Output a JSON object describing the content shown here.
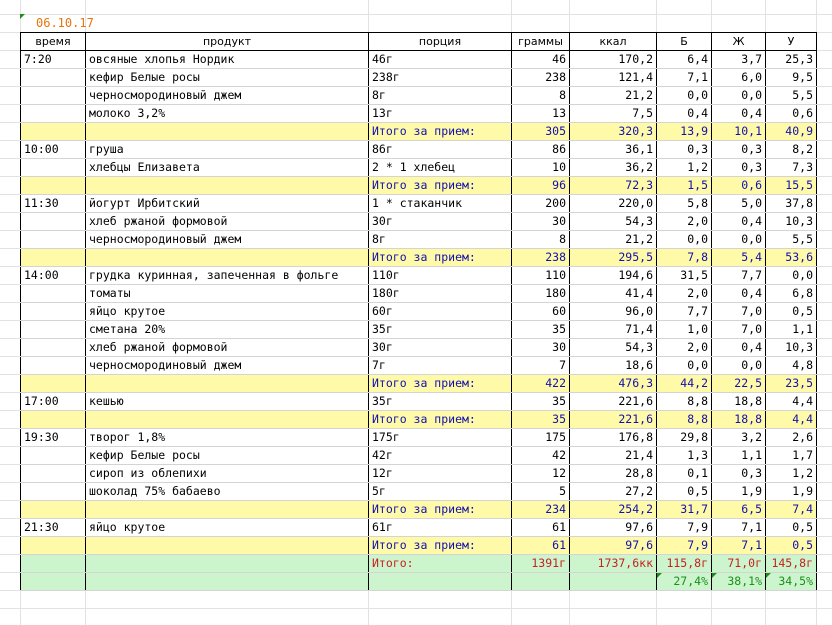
{
  "date": "06.10.17",
  "headers": [
    "время",
    "продукт",
    "порция",
    "граммы",
    "ккал",
    "Б",
    "Ж",
    "У"
  ],
  "rows": [
    {
      "kind": "item",
      "time": "7:20",
      "product": "овсяные хлопья Нордик",
      "portion": "46г",
      "grams": "46",
      "kcal": "170,2",
      "b": "6,4",
      "zh": "3,7",
      "u": "25,3"
    },
    {
      "kind": "item",
      "time": "",
      "product": "кефир Белые росы",
      "portion": "238г",
      "grams": "238",
      "kcal": "121,4",
      "b": "7,1",
      "zh": "6,0",
      "u": "9,5"
    },
    {
      "kind": "item",
      "time": "",
      "product": "черносмородиновый джем",
      "portion": "8г",
      "grams": "8",
      "kcal": "21,2",
      "b": "0,0",
      "zh": "0,0",
      "u": "5,5"
    },
    {
      "kind": "item",
      "time": "",
      "product": "молоко 3,2%",
      "portion": "13г",
      "grams": "13",
      "kcal": "7,5",
      "b": "0,4",
      "zh": "0,4",
      "u": "0,6"
    },
    {
      "kind": "sub",
      "time": "",
      "product": "",
      "portion": "Итого за прием:",
      "grams": "305",
      "kcal": "320,3",
      "b": "13,9",
      "zh": "10,1",
      "u": "40,9"
    },
    {
      "kind": "item",
      "time": "10:00",
      "product": "груша",
      "portion": "86г",
      "grams": "86",
      "kcal": "36,1",
      "b": "0,3",
      "zh": "0,3",
      "u": "8,2"
    },
    {
      "kind": "item",
      "time": "",
      "product": "хлебцы Елизавета",
      "portion": "2 * 1 хлебец",
      "grams": "10",
      "kcal": "36,2",
      "b": "1,2",
      "zh": "0,3",
      "u": "7,3"
    },
    {
      "kind": "sub",
      "time": "",
      "product": "",
      "portion": "Итого за прием:",
      "grams": "96",
      "kcal": "72,3",
      "b": "1,5",
      "zh": "0,6",
      "u": "15,5"
    },
    {
      "kind": "item",
      "time": "11:30",
      "product": "йогурт Ирбитский",
      "portion": "1 * стаканчик",
      "grams": "200",
      "kcal": "220,0",
      "b": "5,8",
      "zh": "5,0",
      "u": "37,8"
    },
    {
      "kind": "item",
      "time": "",
      "product": "хлеб ржаной формовой",
      "portion": "30г",
      "grams": "30",
      "kcal": "54,3",
      "b": "2,0",
      "zh": "0,4",
      "u": "10,3"
    },
    {
      "kind": "item",
      "time": "",
      "product": "черносмородиновый джем",
      "portion": "8г",
      "grams": "8",
      "kcal": "21,2",
      "b": "0,0",
      "zh": "0,0",
      "u": "5,5"
    },
    {
      "kind": "sub",
      "time": "",
      "product": "",
      "portion": "Итого за прием:",
      "grams": "238",
      "kcal": "295,5",
      "b": "7,8",
      "zh": "5,4",
      "u": "53,6"
    },
    {
      "kind": "item",
      "time": "14:00",
      "product": "грудка куринная, запеченная в фольге",
      "portion": "110г",
      "grams": "110",
      "kcal": "194,6",
      "b": "31,5",
      "zh": "7,7",
      "u": "0,0"
    },
    {
      "kind": "item",
      "time": "",
      "product": "томаты",
      "portion": "180г",
      "grams": "180",
      "kcal": "41,4",
      "b": "2,0",
      "zh": "0,4",
      "u": "6,8"
    },
    {
      "kind": "item",
      "time": "",
      "product": "яйцо крутое",
      "portion": "60г",
      "grams": "60",
      "kcal": "96,0",
      "b": "7,7",
      "zh": "7,0",
      "u": "0,5"
    },
    {
      "kind": "item",
      "time": "",
      "product": "сметана 20%",
      "portion": "35г",
      "grams": "35",
      "kcal": "71,4",
      "b": "1,0",
      "zh": "7,0",
      "u": "1,1"
    },
    {
      "kind": "item",
      "time": "",
      "product": "хлеб ржаной формовой",
      "portion": "30г",
      "grams": "30",
      "kcal": "54,3",
      "b": "2,0",
      "zh": "0,4",
      "u": "10,3"
    },
    {
      "kind": "item",
      "time": "",
      "product": "черносмородиновый джем",
      "portion": "7г",
      "grams": "7",
      "kcal": "18,6",
      "b": "0,0",
      "zh": "0,0",
      "u": "4,8"
    },
    {
      "kind": "sub",
      "time": "",
      "product": "",
      "portion": "Итого за прием:",
      "grams": "422",
      "kcal": "476,3",
      "b": "44,2",
      "zh": "22,5",
      "u": "23,5"
    },
    {
      "kind": "item",
      "time": "17:00",
      "product": "кешью",
      "portion": "35г",
      "grams": "35",
      "kcal": "221,6",
      "b": "8,8",
      "zh": "18,8",
      "u": "4,4"
    },
    {
      "kind": "sub",
      "time": "",
      "product": "",
      "portion": "Итого за прием:",
      "grams": "35",
      "kcal": "221,6",
      "b": "8,8",
      "zh": "18,8",
      "u": "4,4"
    },
    {
      "kind": "item",
      "time": "19:30",
      "product": "творог 1,8%",
      "portion": "175г",
      "grams": "175",
      "kcal": "176,8",
      "b": "29,8",
      "zh": "3,2",
      "u": "2,6"
    },
    {
      "kind": "item",
      "time": "",
      "product": "кефир Белые росы",
      "portion": "42г",
      "grams": "42",
      "kcal": "21,4",
      "b": "1,3",
      "zh": "1,1",
      "u": "1,7"
    },
    {
      "kind": "item",
      "time": "",
      "product": "сироп из облепихи",
      "portion": "12г",
      "grams": "12",
      "kcal": "28,8",
      "b": "0,1",
      "zh": "0,3",
      "u": "1,2"
    },
    {
      "kind": "item",
      "time": "",
      "product": "шоколад 75% бабаево",
      "portion": "5г",
      "grams": "5",
      "kcal": "27,2",
      "b": "0,5",
      "zh": "1,9",
      "u": "1,9"
    },
    {
      "kind": "sub",
      "time": "",
      "product": "",
      "portion": "Итого за прием:",
      "grams": "234",
      "kcal": "254,2",
      "b": "31,7",
      "zh": "6,5",
      "u": "7,4"
    },
    {
      "kind": "item",
      "time": "21:30",
      "product": "яйцо крутое",
      "portion": "61г",
      "grams": "61",
      "kcal": "97,6",
      "b": "7,9",
      "zh": "7,1",
      "u": "0,5"
    },
    {
      "kind": "sub",
      "time": "",
      "product": "",
      "portion": "Итого за прием:",
      "grams": "61",
      "kcal": "97,6",
      "b": "7,9",
      "zh": "7,1",
      "u": "0,5"
    },
    {
      "kind": "total",
      "time": "",
      "product": "",
      "portion": "Итого:",
      "grams": "1391г",
      "kcal": "1737,6кк",
      "b": "115,8г",
      "zh": "71,0г",
      "u": "145,8г"
    },
    {
      "kind": "pct",
      "time": "",
      "product": "",
      "portion": "",
      "grams": "",
      "kcal": "",
      "b": "27,4%",
      "zh": "38,1%",
      "u": "34,5%"
    }
  ],
  "colors": {
    "date": "#e8740c",
    "subtotal_bg": "#fffaa8",
    "subtotal_text": "#1010b0",
    "total_bg": "#cdf5cd",
    "total_text": "#c82020",
    "pct_text": "#1a8f1a"
  }
}
